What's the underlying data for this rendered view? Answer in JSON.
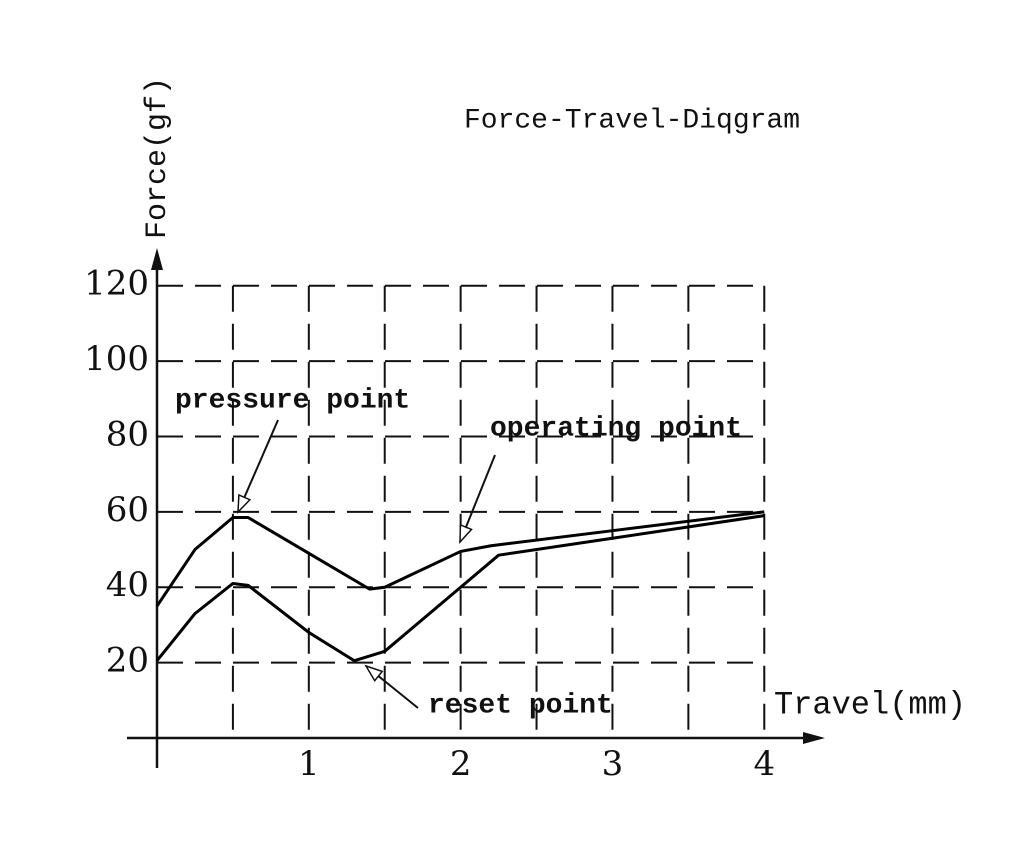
{
  "chart_data": {
    "type": "line",
    "title": "Force-Travel-Diqgram",
    "x_label": "Travel(mm)",
    "y_label": "Force(gf)",
    "xlim": [
      0,
      4.4
    ],
    "ylim": [
      0,
      130
    ],
    "xticks": [
      1,
      2,
      3,
      4
    ],
    "xminor": [
      0.5,
      1.5,
      2.5,
      3.5
    ],
    "yticks": [
      20,
      40,
      60,
      80,
      100,
      120
    ],
    "grid": true,
    "series": [
      {
        "color": "#000000",
        "x": [
          0,
          0.25,
          0.5,
          0.6,
          1,
          1.4,
          1.5,
          2,
          2.2,
          3,
          4
        ],
        "values": [
          35,
          50,
          58.5,
          58.5,
          49,
          39.5,
          40,
          49.5,
          51,
          55,
          60
        ]
      },
      {
        "color": "#000000",
        "x": [
          0,
          0.25,
          0.5,
          0.6,
          1,
          1.3,
          1.5,
          2,
          2.25,
          3,
          4
        ],
        "values": [
          20.5,
          33,
          41,
          40.5,
          28,
          20.5,
          23,
          40,
          48.5,
          53,
          59
        ]
      }
    ],
    "annotations": [
      "pressure point",
      "operating point",
      "reset point"
    ]
  }
}
